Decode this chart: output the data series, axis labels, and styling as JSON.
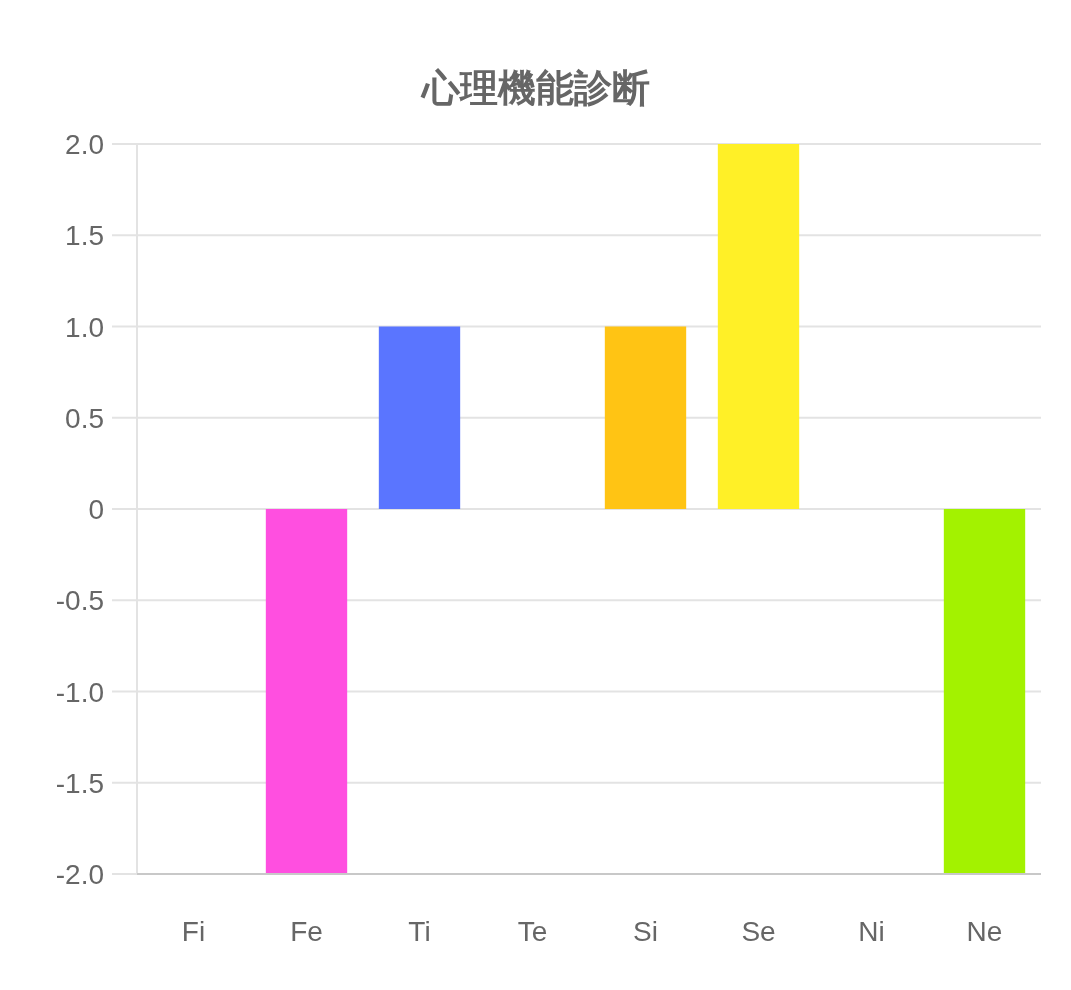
{
  "chart_data": {
    "type": "bar",
    "title": "心理機能診断",
    "categories": [
      "Fi",
      "Fe",
      "Ti",
      "Te",
      "Si",
      "Se",
      "Ni",
      "Ne"
    ],
    "values": [
      0,
      -2,
      1,
      0,
      1,
      2,
      0,
      -2
    ],
    "colors": [
      null,
      "#ff4fe0",
      "#5a75ff",
      null,
      "#ffc414",
      "#fff027",
      null,
      "#a3f200"
    ],
    "ylim": [
      -2,
      2
    ],
    "yticks": [
      {
        "value": -2,
        "label": "-2.0"
      },
      -1.5,
      {
        "value": -1,
        "label": "-1.0"
      },
      -0.5,
      0,
      0.5,
      {
        "value": 1,
        "label": "1.0"
      },
      1.5,
      {
        "value": 2,
        "label": "2.0"
      }
    ],
    "grid": "y"
  }
}
